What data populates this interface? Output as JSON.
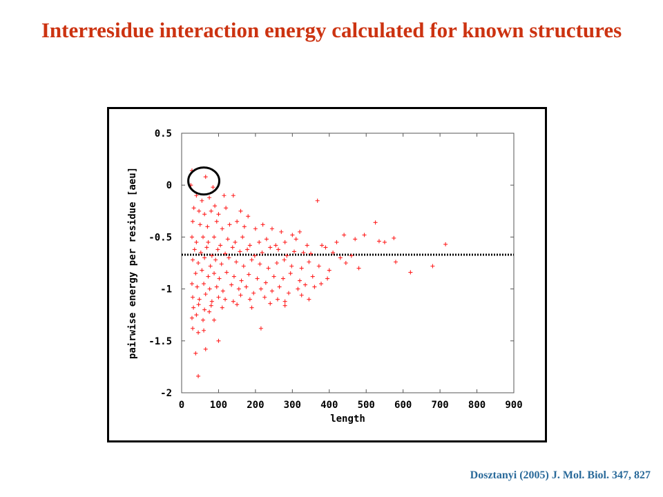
{
  "slide": {
    "title": "Interresidue interaction energy calculated for known structures",
    "citation": "Dosztanyi (2005) J. Mol. Biol. 347, 827",
    "title_color": "#cc3311",
    "citation_color": "#2a6a9a"
  },
  "chart_data": {
    "type": "scatter",
    "title": "",
    "xlabel": "length",
    "ylabel": "pairwise energy per residue [aeu]",
    "xlim": [
      0,
      900
    ],
    "ylim": [
      -2,
      0.5
    ],
    "xticks": [
      0,
      100,
      200,
      300,
      400,
      500,
      600,
      700,
      800,
      900
    ],
    "yticks": [
      0.5,
      0,
      -0.5,
      -1,
      -1.5,
      -2
    ],
    "xtick_labels": [
      "0",
      "100",
      "200",
      "300",
      "400",
      "500",
      "600",
      "700",
      "800",
      "900"
    ],
    "ytick_labels": [
      "0.5",
      "0",
      "-0.5",
      "-1",
      "-1.5",
      "-2"
    ],
    "grid": false,
    "marker": "+",
    "marker_color": "#ff2020",
    "reference_line": {
      "y": -0.67,
      "x_range": [
        0,
        900
      ],
      "style": "dotted",
      "color": "#000000"
    },
    "annotation": {
      "type": "circle",
      "center": [
        60,
        0.04
      ],
      "radius_x": 42,
      "radius_y": 0.13
    },
    "series": [
      {
        "points": [
          [
            28,
            0.14
          ],
          [
            25,
            0.0
          ],
          [
            65,
            0.08
          ],
          [
            85,
            -0.02
          ],
          [
            368,
            -0.15
          ],
          [
            40,
            -0.1
          ],
          [
            55,
            -0.15
          ],
          [
            75,
            -0.12
          ],
          [
            90,
            -0.2
          ],
          [
            115,
            -0.1
          ],
          [
            140,
            -0.1
          ],
          [
            33,
            -0.22
          ],
          [
            47,
            -0.25
          ],
          [
            62,
            -0.28
          ],
          [
            80,
            -0.25
          ],
          [
            100,
            -0.28
          ],
          [
            120,
            -0.22
          ],
          [
            160,
            -0.25
          ],
          [
            180,
            -0.3
          ],
          [
            30,
            -0.35
          ],
          [
            50,
            -0.38
          ],
          [
            70,
            -0.4
          ],
          [
            95,
            -0.35
          ],
          [
            110,
            -0.42
          ],
          [
            130,
            -0.38
          ],
          [
            150,
            -0.35
          ],
          [
            170,
            -0.4
          ],
          [
            200,
            -0.42
          ],
          [
            220,
            -0.38
          ],
          [
            245,
            -0.42
          ],
          [
            270,
            -0.45
          ],
          [
            300,
            -0.48
          ],
          [
            320,
            -0.45
          ],
          [
            28,
            -0.5
          ],
          [
            40,
            -0.55
          ],
          [
            58,
            -0.5
          ],
          [
            72,
            -0.55
          ],
          [
            88,
            -0.5
          ],
          [
            105,
            -0.58
          ],
          [
            125,
            -0.52
          ],
          [
            145,
            -0.55
          ],
          [
            165,
            -0.5
          ],
          [
            185,
            -0.58
          ],
          [
            210,
            -0.55
          ],
          [
            230,
            -0.52
          ],
          [
            255,
            -0.58
          ],
          [
            280,
            -0.55
          ],
          [
            310,
            -0.52
          ],
          [
            340,
            -0.58
          ],
          [
            380,
            -0.58
          ],
          [
            420,
            -0.55
          ],
          [
            440,
            -0.48
          ],
          [
            470,
            -0.52
          ],
          [
            495,
            -0.48
          ],
          [
            525,
            -0.36
          ],
          [
            535,
            -0.54
          ],
          [
            550,
            -0.55
          ],
          [
            575,
            -0.51
          ],
          [
            715,
            -0.57
          ],
          [
            35,
            -0.62
          ],
          [
            52,
            -0.65
          ],
          [
            68,
            -0.6
          ],
          [
            82,
            -0.68
          ],
          [
            98,
            -0.62
          ],
          [
            118,
            -0.66
          ],
          [
            138,
            -0.6
          ],
          [
            158,
            -0.64
          ],
          [
            178,
            -0.62
          ],
          [
            198,
            -0.68
          ],
          [
            218,
            -0.65
          ],
          [
            240,
            -0.6
          ],
          [
            262,
            -0.62
          ],
          [
            285,
            -0.68
          ],
          [
            305,
            -0.64
          ],
          [
            330,
            -0.65
          ],
          [
            350,
            -0.66
          ],
          [
            390,
            -0.6
          ],
          [
            410,
            -0.65
          ],
          [
            430,
            -0.7
          ],
          [
            460,
            -0.68
          ],
          [
            30,
            -0.72
          ],
          [
            45,
            -0.75
          ],
          [
            62,
            -0.7
          ],
          [
            78,
            -0.78
          ],
          [
            92,
            -0.72
          ],
          [
            108,
            -0.76
          ],
          [
            128,
            -0.7
          ],
          [
            148,
            -0.74
          ],
          [
            168,
            -0.78
          ],
          [
            190,
            -0.72
          ],
          [
            212,
            -0.76
          ],
          [
            235,
            -0.8
          ],
          [
            258,
            -0.75
          ],
          [
            278,
            -0.72
          ],
          [
            298,
            -0.78
          ],
          [
            325,
            -0.8
          ],
          [
            345,
            -0.74
          ],
          [
            372,
            -0.78
          ],
          [
            400,
            -0.82
          ],
          [
            445,
            -0.75
          ],
          [
            480,
            -0.8
          ],
          [
            580,
            -0.74
          ],
          [
            38,
            -0.85
          ],
          [
            55,
            -0.82
          ],
          [
            72,
            -0.88
          ],
          [
            88,
            -0.85
          ],
          [
            102,
            -0.9
          ],
          [
            122,
            -0.84
          ],
          [
            142,
            -0.88
          ],
          [
            162,
            -0.92
          ],
          [
            182,
            -0.86
          ],
          [
            205,
            -0.9
          ],
          [
            228,
            -0.94
          ],
          [
            250,
            -0.88
          ],
          [
            275,
            -0.9
          ],
          [
            295,
            -0.85
          ],
          [
            320,
            -0.92
          ],
          [
            355,
            -0.88
          ],
          [
            378,
            -0.95
          ],
          [
            395,
            -0.9
          ],
          [
            620,
            -0.84
          ],
          [
            680,
            -0.78
          ],
          [
            28,
            -0.95
          ],
          [
            42,
            -0.98
          ],
          [
            60,
            -0.95
          ],
          [
            76,
            -1.0
          ],
          [
            95,
            -0.98
          ],
          [
            112,
            -1.02
          ],
          [
            135,
            -0.96
          ],
          [
            155,
            -1.0
          ],
          [
            175,
            -0.98
          ],
          [
            195,
            -1.04
          ],
          [
            215,
            -1.0
          ],
          [
            245,
            -1.02
          ],
          [
            265,
            -0.98
          ],
          [
            290,
            -1.04
          ],
          [
            315,
            -1.0
          ],
          [
            335,
            -0.96
          ],
          [
            360,
            -0.98
          ],
          [
            30,
            -1.08
          ],
          [
            48,
            -1.1
          ],
          [
            65,
            -1.05
          ],
          [
            82,
            -1.12
          ],
          [
            100,
            -1.08
          ],
          [
            118,
            -1.1
          ],
          [
            140,
            -1.12
          ],
          [
            160,
            -1.06
          ],
          [
            185,
            -1.1
          ],
          [
            225,
            -1.08
          ],
          [
            260,
            -1.1
          ],
          [
            280,
            -1.12
          ],
          [
            325,
            -1.06
          ],
          [
            345,
            -1.1
          ],
          [
            32,
            -1.18
          ],
          [
            46,
            -1.15
          ],
          [
            62,
            -1.2
          ],
          [
            80,
            -1.16
          ],
          [
            110,
            -1.18
          ],
          [
            150,
            -1.15
          ],
          [
            190,
            -1.18
          ],
          [
            240,
            -1.14
          ],
          [
            280,
            -1.16
          ],
          [
            28,
            -1.28
          ],
          [
            40,
            -1.25
          ],
          [
            58,
            -1.3
          ],
          [
            75,
            -1.22
          ],
          [
            88,
            -1.3
          ],
          [
            215,
            -1.38
          ],
          [
            30,
            -1.38
          ],
          [
            45,
            -1.42
          ],
          [
            60,
            -1.4
          ],
          [
            100,
            -1.5
          ],
          [
            65,
            -1.58
          ],
          [
            38,
            -1.62
          ],
          [
            45,
            -1.84
          ]
        ]
      }
    ]
  }
}
